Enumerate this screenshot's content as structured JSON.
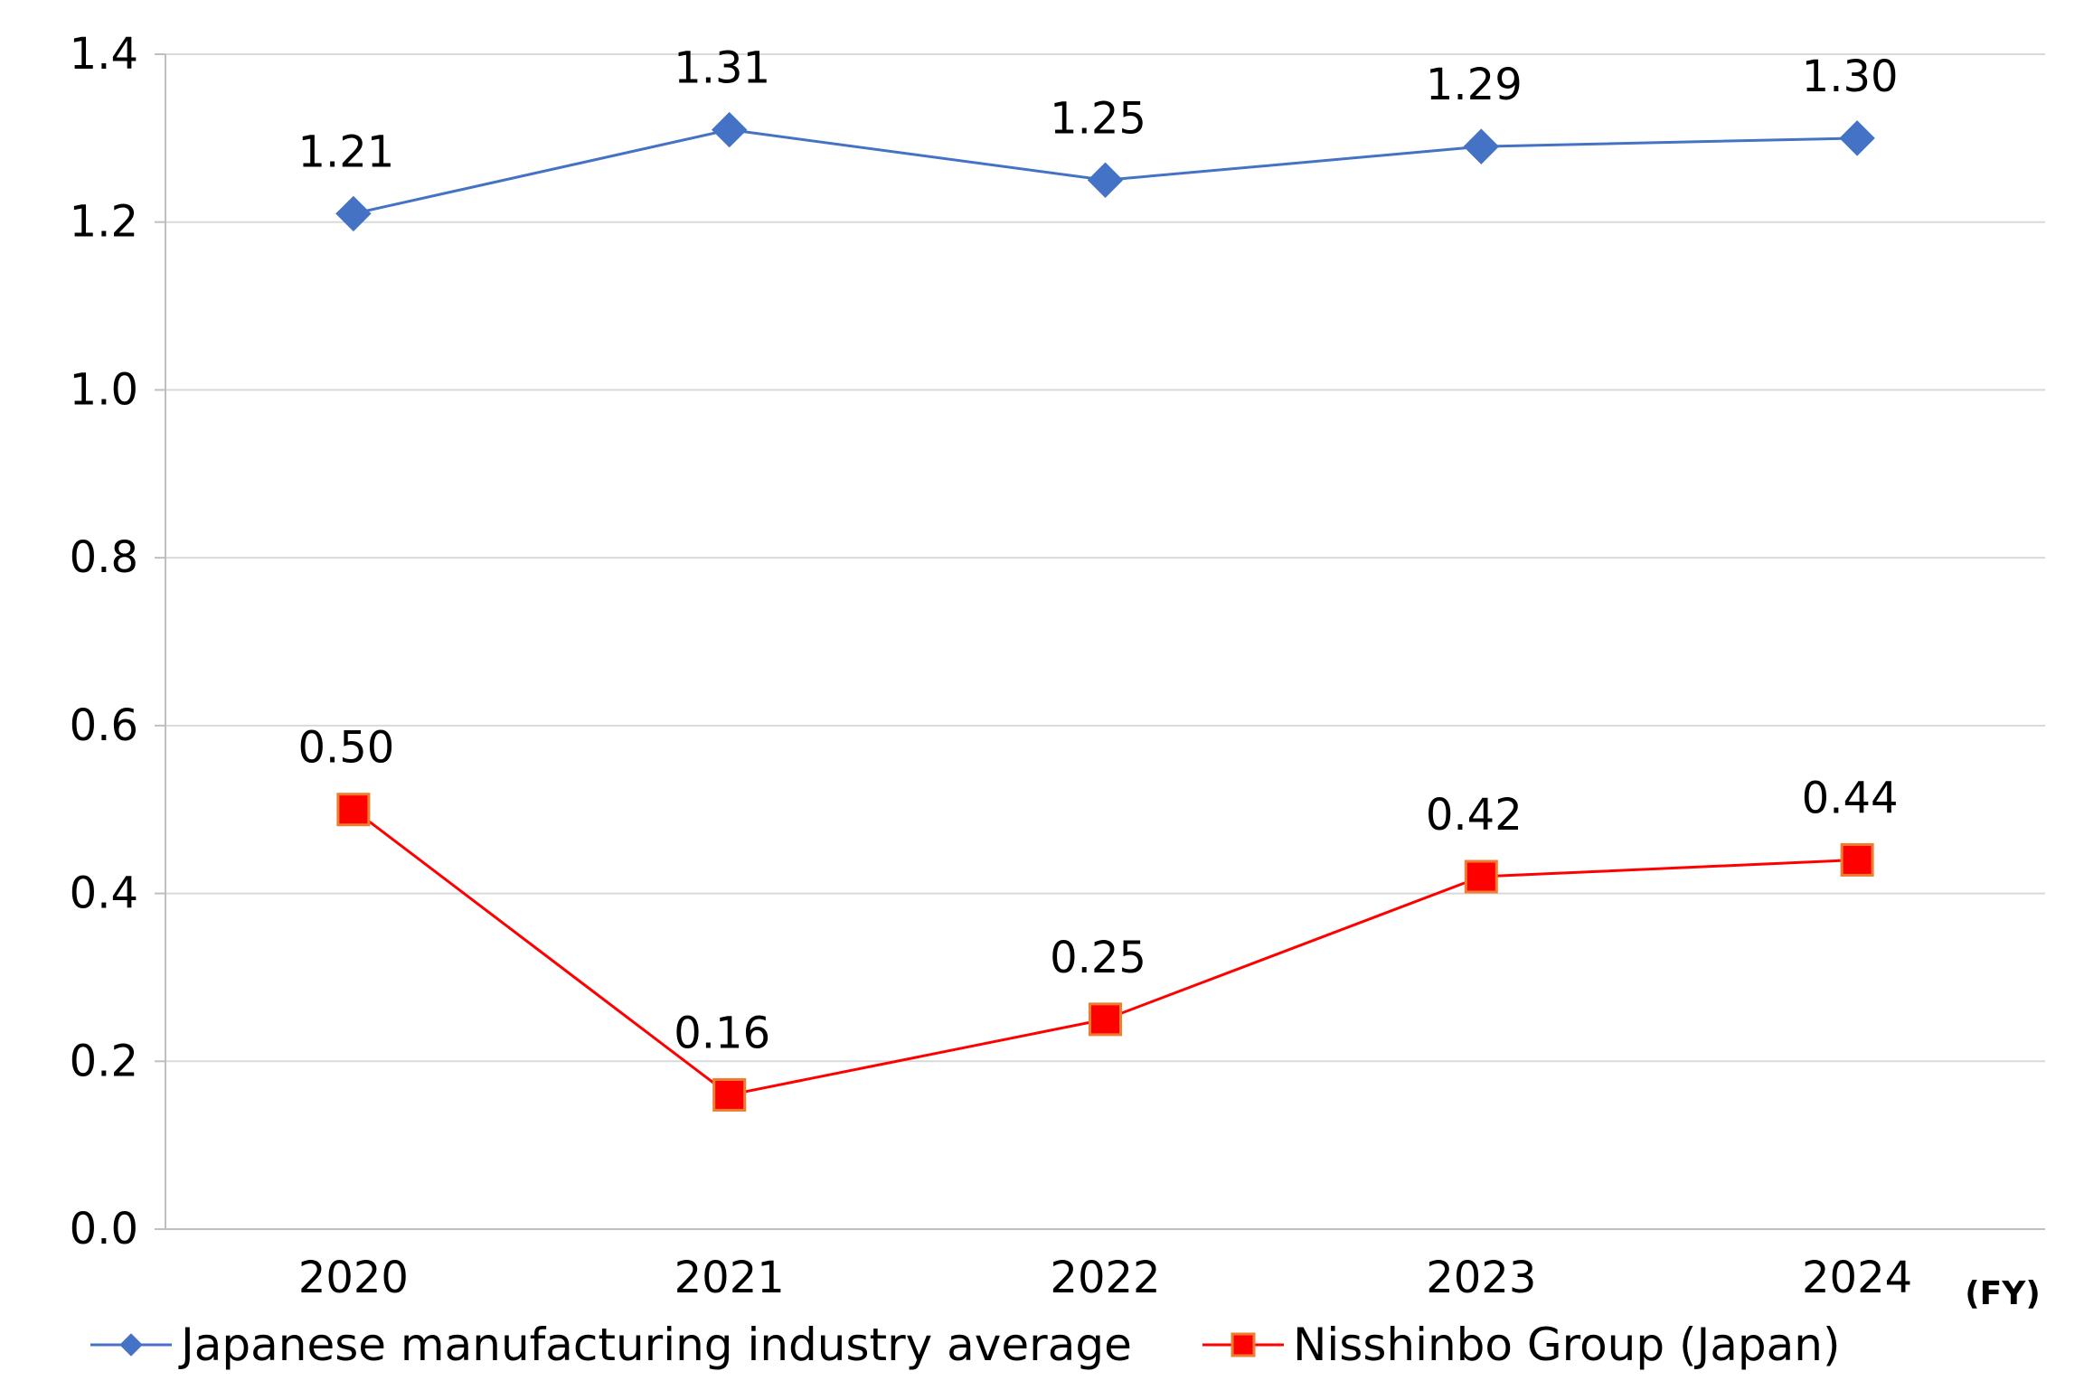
{
  "chart_data": {
    "type": "line",
    "title": "",
    "xlabel": "",
    "ylabel": "",
    "x_unit_label": "(FY)",
    "categories": [
      "2020",
      "2021",
      "2022",
      "2023",
      "2024"
    ],
    "ylim": [
      0,
      1.4
    ],
    "yticks": [
      "0.0",
      "0.2",
      "0.4",
      "0.6",
      "0.8",
      "1.0",
      "1.2",
      "1.4"
    ],
    "ytick_values": [
      0,
      0.2,
      0.4,
      0.6,
      0.8,
      1.0,
      1.2,
      1.4
    ],
    "grid": true,
    "legend_position": "bottom",
    "series": [
      {
        "name": "Japanese manufacturing industry average",
        "values": [
          1.21,
          1.31,
          1.25,
          1.29,
          1.3
        ],
        "labels": [
          "1.21",
          "1.31",
          "1.25",
          "1.29",
          "1.30"
        ],
        "color": "#4472C4",
        "marker": "diamond"
      },
      {
        "name": "Nisshinbo Group (Japan)",
        "values": [
          0.5,
          0.16,
          0.25,
          0.42,
          0.44
        ],
        "labels": [
          "0.50",
          "0.16",
          "0.25",
          "0.42",
          "0.44"
        ],
        "color": "#FF0000",
        "marker_edge": "#ED7D31",
        "marker": "square"
      }
    ]
  }
}
